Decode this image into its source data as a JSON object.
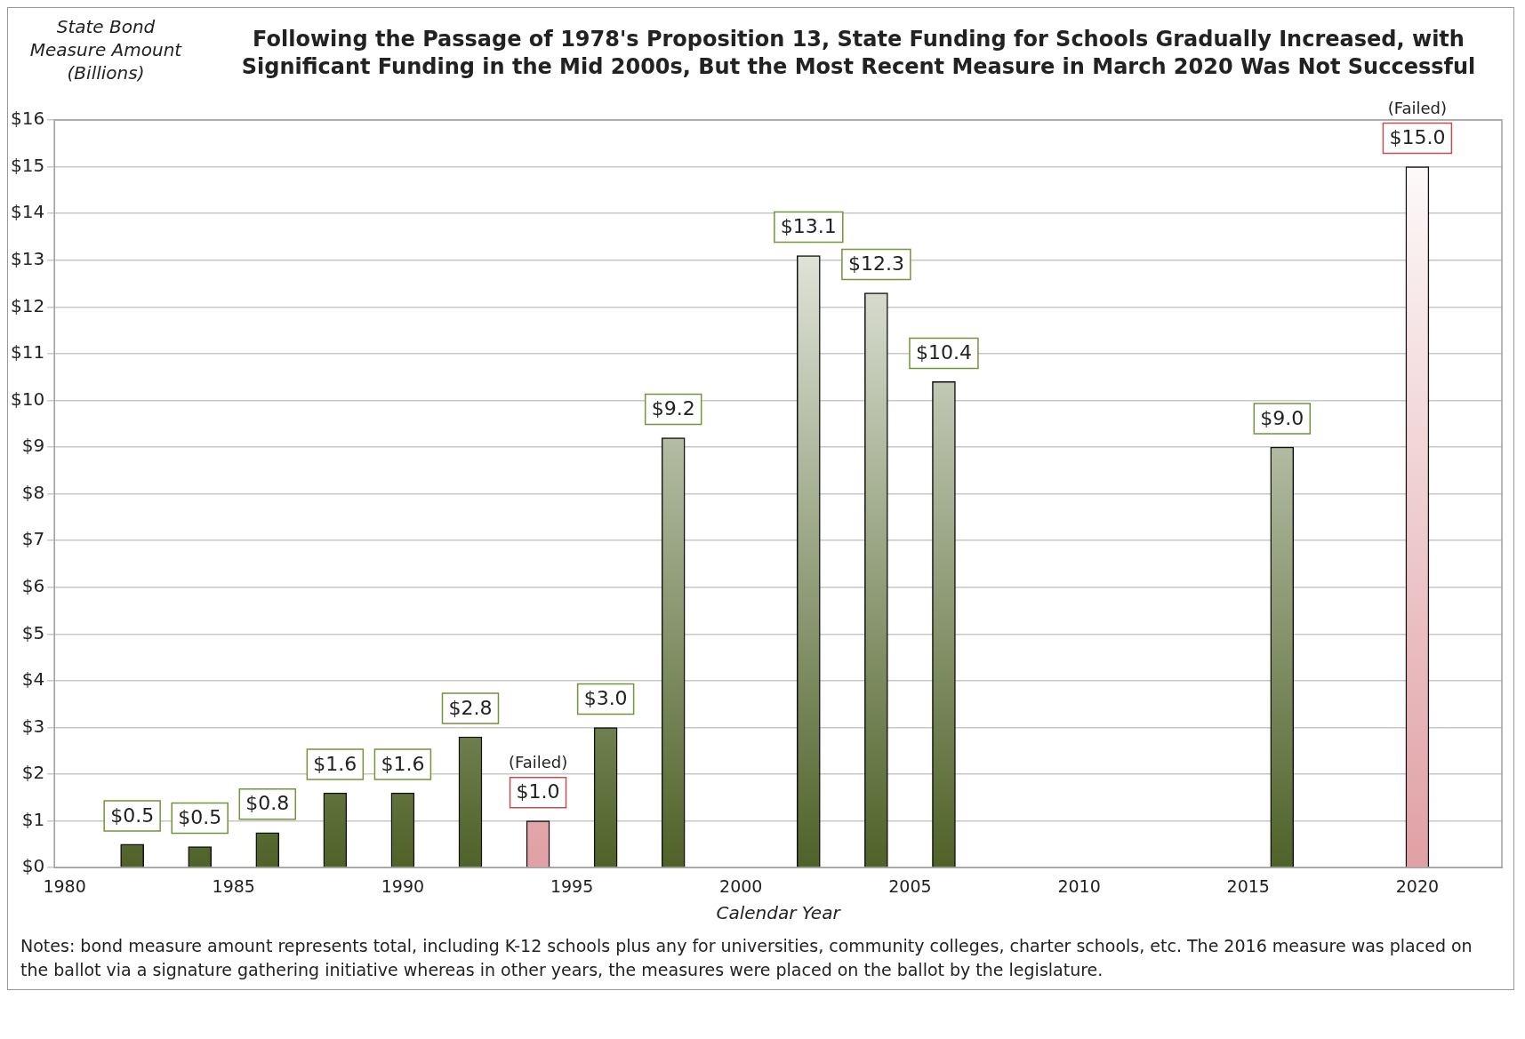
{
  "chart_data": {
    "type": "bar",
    "title": "Following the Passage of 1978's Proposition 13, State Funding for Schools Gradually Increased, with Significant Funding in the Mid 2000s, But the Most Recent Measure in March 2020 Was Not Successful",
    "ylabel": "State Bond Measure Amount (Billions)",
    "xlabel": "Calendar Year",
    "x": [
      1982,
      1984,
      1986,
      1988,
      1990,
      1992,
      1994,
      1996,
      1998,
      2002,
      2004,
      2006,
      2016,
      2020
    ],
    "values": [
      0.5,
      0.45,
      0.75,
      1.6,
      1.6,
      2.8,
      1.0,
      3.0,
      9.2,
      13.1,
      12.3,
      10.4,
      9.0,
      15.0
    ],
    "value_labels": [
      "$0.5",
      "$0.5",
      "$0.8",
      "$1.6",
      "$1.6",
      "$2.8",
      "$1.0",
      "$3.0",
      "$9.2",
      "$13.1",
      "$12.3",
      "$10.4",
      "$9.0",
      "$15.0"
    ],
    "colors": [
      "#4f6228",
      "#4f6228",
      "#4f6228",
      "#4f6228",
      "#4f6228",
      "#4f6228",
      "#e0a0a4",
      "#4f6228",
      "#4f6228",
      "#4f6228",
      "#4f6228",
      "#4f6228",
      "#4f6228",
      "#e0a0a4"
    ],
    "xlim": [
      1979.7,
      2022.5
    ],
    "xticks": [
      1980,
      1985,
      1990,
      1995,
      2000,
      2005,
      2010,
      2015,
      2020
    ],
    "ylim": [
      0,
      16
    ],
    "yticks": [
      {
        "value": 0,
        "label": "$0"
      },
      {
        "value": 1,
        "label": "$1"
      },
      {
        "value": 2,
        "label": "$2"
      },
      {
        "value": 3,
        "label": "$3"
      },
      {
        "value": 4,
        "label": "$4"
      },
      {
        "value": 5,
        "label": "$5"
      },
      {
        "value": 6,
        "label": "$6"
      },
      {
        "value": 7,
        "label": "$7"
      },
      {
        "value": 8,
        "label": "$8"
      },
      {
        "value": 9,
        "label": "$9"
      },
      {
        "value": 10,
        "label": "$10"
      },
      {
        "value": 11,
        "label": "$11"
      },
      {
        "value": 12,
        "label": "$12"
      },
      {
        "value": 13,
        "label": "$13"
      },
      {
        "value": 14,
        "label": "$14"
      },
      {
        "value": 15,
        "label": "$15"
      },
      {
        "value": 16,
        "label": "$16"
      }
    ],
    "grid": "y",
    "legend": false,
    "annotations": [
      "(Failed)",
      "(Failed)",
      "Notes: bond measure amount represents total, including K-12 schools plus any for universities, community colleges, charter schools, etc. The 2016 measure was placed on the ballot via a signature gathering initiative whereas in other years, the measures were placed on the ballot by the legislature."
    ]
  }
}
